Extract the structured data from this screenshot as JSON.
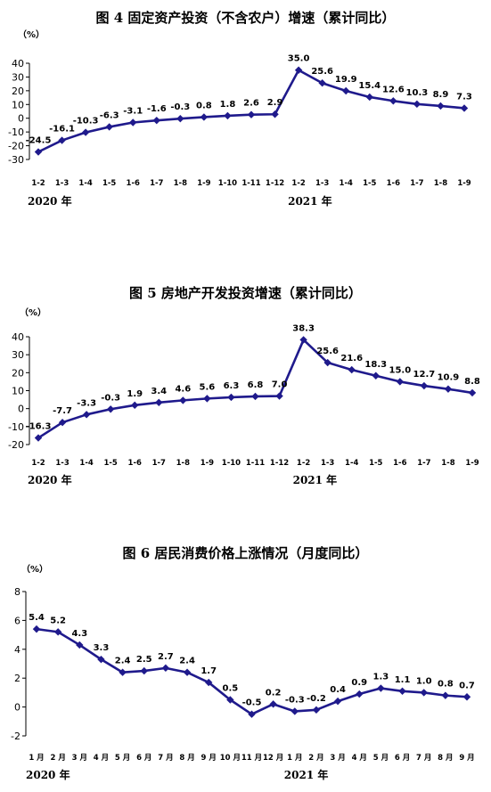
{
  "chart_data": [
    {
      "type": "line",
      "title": "图 4   固定资产投资（不含农户）增速（累计同比）",
      "unit": "（%）",
      "categories": [
        "1-2",
        "1-3",
        "1-4",
        "1-5",
        "1-6",
        "1-7",
        "1-8",
        "1-9",
        "1-10",
        "1-11",
        "1-12",
        "1-2",
        "1-3",
        "1-4",
        "1-5",
        "1-6",
        "1-7",
        "1-8",
        "1-9"
      ],
      "year_labels": [
        "2020 年",
        "2021 年"
      ],
      "year_label_positions": [
        0,
        11
      ],
      "series": [
        {
          "values": [
            -24.5,
            -16.1,
            -10.3,
            -6.3,
            -3.1,
            -1.6,
            -0.3,
            0.8,
            1.8,
            2.6,
            2.9,
            35.0,
            25.6,
            19.9,
            15.4,
            12.6,
            10.3,
            8.9,
            7.3
          ]
        }
      ],
      "data_labels": [
        "-24.5",
        "-16.1",
        "-10.3",
        "-6.3",
        "-3.1",
        "-1.6",
        "-0.3",
        "0.8",
        "1.8",
        "2.6",
        "2.9",
        "35.0",
        "25.6",
        "19.9",
        "15.4",
        "12.6",
        "10.3",
        "8.9",
        "7.3"
      ],
      "yticks": [
        40,
        30,
        20,
        10,
        0,
        -10,
        -20,
        -30
      ],
      "ylim": [
        -30,
        40
      ],
      "color": "#1f1a8c"
    },
    {
      "type": "line",
      "title": "图 5   房地产开发投资增速（累计同比）",
      "unit": "（%）",
      "categories": [
        "1-2",
        "1-3",
        "1-4",
        "1-5",
        "1-6",
        "1-7",
        "1-8",
        "1-9",
        "1-10",
        "1-11",
        "1-12",
        "1-2",
        "1-3",
        "1-4",
        "1-5",
        "1-6",
        "1-7",
        "1-8",
        "1-9"
      ],
      "year_labels": [
        "2020 年",
        "2021 年"
      ],
      "year_label_positions": [
        0,
        11
      ],
      "series": [
        {
          "values": [
            -16.3,
            -7.7,
            -3.3,
            -0.3,
            1.9,
            3.4,
            4.6,
            5.6,
            6.3,
            6.8,
            7.0,
            38.3,
            25.6,
            21.6,
            18.3,
            15.0,
            12.7,
            10.9,
            8.8
          ]
        }
      ],
      "data_labels": [
        "-16.3",
        "-7.7",
        "-3.3",
        "-0.3",
        "1.9",
        "3.4",
        "4.6",
        "5.6",
        "6.3",
        "6.8",
        "7.0",
        "38.3",
        "25.6",
        "21.6",
        "18.3",
        "15.0",
        "12.7",
        "10.9",
        "8.8"
      ],
      "yticks": [
        40,
        30,
        20,
        10,
        0,
        -10,
        -20
      ],
      "ylim": [
        -20,
        40
      ],
      "color": "#1f1a8c"
    },
    {
      "type": "line",
      "title": "图 6   居民消费价格上涨情况（月度同比）",
      "unit": "（%）",
      "categories": [
        "1 月",
        "2 月",
        "3 月",
        "4 月",
        "5 月",
        "6 月",
        "7 月",
        "8 月",
        "9 月",
        "10 月",
        "11 月",
        "12 月",
        "1 月",
        "2 月",
        "3 月",
        "4 月",
        "5 月",
        "6 月",
        "7 月",
        "8 月",
        "9 月"
      ],
      "year_labels": [
        "2020 年",
        "2021 年"
      ],
      "year_label_positions": [
        0,
        12
      ],
      "series": [
        {
          "values": [
            5.4,
            5.2,
            4.3,
            3.3,
            2.4,
            2.5,
            2.7,
            2.4,
            1.7,
            0.5,
            -0.5,
            0.2,
            -0.3,
            -0.2,
            0.4,
            0.9,
            1.3,
            1.1,
            1.0,
            0.8,
            0.7
          ]
        }
      ],
      "data_labels": [
        "5.4",
        "5.2",
        "4.3",
        "3.3",
        "2.4",
        "2.5",
        "2.7",
        "2.4",
        "1.7",
        "0.5",
        "-0.5",
        "0.2",
        "-0.3",
        "-0.2",
        "0.4",
        "0.9",
        "1.3",
        "1.1",
        "1.0",
        "0.8",
        "0.7"
      ],
      "yticks": [
        8,
        6,
        4,
        2,
        0,
        -2
      ],
      "ylim": [
        -2,
        8
      ],
      "color": "#1f1a8c"
    }
  ]
}
